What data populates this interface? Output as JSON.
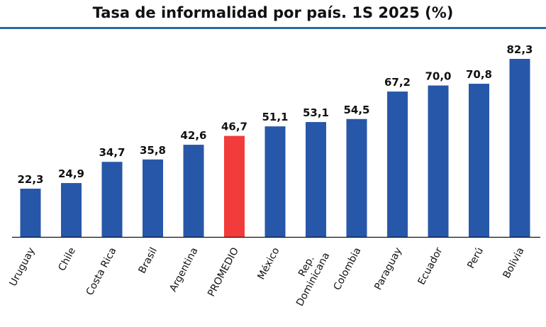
{
  "chart_data": {
    "type": "bar",
    "title": "Tasa de informalidad por país. 1S 2025 (%)",
    "categories": [
      "Uruguay",
      "Chile",
      "Costa Rica",
      "Brasil",
      "Argentina",
      "PROMEDIO",
      "México",
      "Rep. Dominicana",
      "Colombia",
      "Paraguay",
      "Ecuador",
      "Perú",
      "Bolivia"
    ],
    "values": [
      22.3,
      24.9,
      34.7,
      35.8,
      42.6,
      46.7,
      51.1,
      53.1,
      54.5,
      67.2,
      70.0,
      70.8,
      82.3
    ],
    "value_labels": [
      "22,3",
      "24,9",
      "34,7",
      "35,8",
      "42,6",
      "46,7",
      "51,1",
      "53,1",
      "54,5",
      "67,2",
      "70,0",
      "70,8",
      "82,3"
    ],
    "highlight_category": "PROMEDIO",
    "colors": {
      "bar": "#2757a8",
      "highlight": "#f23b3b",
      "title_rule": "#2f6aa0"
    },
    "ylim": [
      0,
      90
    ],
    "grid": false,
    "xlabel": "",
    "ylabel": ""
  }
}
